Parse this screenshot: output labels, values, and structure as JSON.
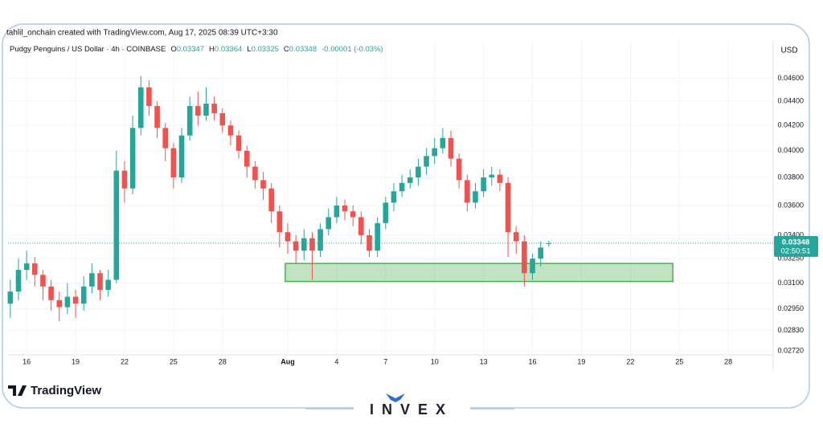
{
  "header": {
    "credit": "tahlil_onchain created with TradingView.com, Aug 17, 2025 08:39 UTC+3:30",
    "currency": "USD",
    "brand": "TradingView",
    "watermark": "INVEX"
  },
  "chart_data": {
    "type": "candlestick",
    "title": "Pudgy Penguins / US Dollar · 4h · COINBASE",
    "ohlc_legend": [
      {
        "label": "O",
        "value": "0.03347"
      },
      {
        "label": "H",
        "value": "0.03364"
      },
      {
        "label": "L",
        "value": "0.03325"
      },
      {
        "label": "C",
        "value": "0.03348"
      },
      {
        "label": "",
        "value": "-0.00001 (-0.03%)"
      }
    ],
    "up_color": "#26a69a",
    "down_color": "#ef5350",
    "log_scale": true,
    "grid": true,
    "xlim": [
      14.86,
      61.75
    ],
    "xticks": [
      {
        "value": 16,
        "label": "16"
      },
      {
        "value": 19,
        "label": "19"
      },
      {
        "value": 22,
        "label": "22"
      },
      {
        "value": 25,
        "label": "25"
      },
      {
        "value": 28,
        "label": "28"
      },
      {
        "value": 32,
        "label": "Aug"
      },
      {
        "value": 35,
        "label": "4"
      },
      {
        "value": 38,
        "label": "7"
      },
      {
        "value": 41,
        "label": "10"
      },
      {
        "value": 44,
        "label": "13"
      },
      {
        "value": 47,
        "label": "16"
      },
      {
        "value": 50,
        "label": "19"
      },
      {
        "value": 53,
        "label": "22"
      },
      {
        "value": 56,
        "label": "25"
      },
      {
        "value": 59,
        "label": "28"
      }
    ],
    "ylim": [
      0.027,
      0.0495
    ],
    "yticks": [
      {
        "value": 0.046,
        "label": "0.04600"
      },
      {
        "value": 0.044,
        "label": "0.04400"
      },
      {
        "value": 0.042,
        "label": "0.04200"
      },
      {
        "value": 0.04,
        "label": "0.04000"
      },
      {
        "value": 0.038,
        "label": "0.03800"
      },
      {
        "value": 0.036,
        "label": "0.03600"
      },
      {
        "value": 0.034,
        "label": "0.03400"
      },
      {
        "value": 0.0325,
        "label": "0.03250"
      },
      {
        "value": 0.031,
        "label": "0.03100"
      },
      {
        "value": 0.0295,
        "label": "0.02950"
      },
      {
        "value": 0.0283,
        "label": "0.02830"
      },
      {
        "value": 0.0272,
        "label": "0.02720"
      }
    ],
    "x": [
      15,
      15.5,
      16,
      16.5,
      17,
      17.5,
      18,
      18.5,
      19,
      19.5,
      20,
      20.5,
      21,
      21.5,
      22,
      22.5,
      23,
      23.5,
      24,
      24.5,
      25,
      25.5,
      26,
      26.5,
      27,
      27.5,
      28,
      28.5,
      29,
      29.5,
      30,
      30.5,
      31,
      31.5,
      32,
      32.5,
      33,
      33.5,
      34,
      34.5,
      35,
      35.5,
      36,
      36.5,
      37,
      37.5,
      38,
      38.5,
      39,
      39.5,
      40,
      40.5,
      41,
      41.5,
      42,
      42.5,
      43,
      43.5,
      44,
      44.5,
      45,
      45.5,
      46,
      46.5,
      47,
      47.5,
      48
    ],
    "open": [
      0.0298,
      0.0305,
      0.0318,
      0.0322,
      0.0315,
      0.0308,
      0.03,
      0.0296,
      0.0302,
      0.0298,
      0.0308,
      0.0316,
      0.0306,
      0.0312,
      0.0385,
      0.0372,
      0.0418,
      0.0452,
      0.0436,
      0.0418,
      0.0402,
      0.038,
      0.0412,
      0.0436,
      0.0428,
      0.0438,
      0.043,
      0.042,
      0.0412,
      0.04,
      0.0388,
      0.0378,
      0.0372,
      0.0356,
      0.0342,
      0.0336,
      0.033,
      0.0338,
      0.033,
      0.0344,
      0.0352,
      0.036,
      0.0356,
      0.0352,
      0.034,
      0.033,
      0.0348,
      0.0362,
      0.037,
      0.0376,
      0.038,
      0.0388,
      0.0396,
      0.0402,
      0.041,
      0.0394,
      0.0378,
      0.0362,
      0.037,
      0.038,
      0.0382,
      0.0376,
      0.0342,
      0.0336,
      0.0316,
      0.0325,
      0.03347
    ],
    "high": [
      0.0312,
      0.0325,
      0.033,
      0.0326,
      0.0318,
      0.0312,
      0.0305,
      0.031,
      0.0306,
      0.0314,
      0.0322,
      0.0318,
      0.0318,
      0.04,
      0.0392,
      0.0428,
      0.0462,
      0.0458,
      0.044,
      0.0422,
      0.0406,
      0.0418,
      0.0444,
      0.0448,
      0.0452,
      0.0444,
      0.0434,
      0.0424,
      0.0416,
      0.0404,
      0.0392,
      0.0384,
      0.0376,
      0.036,
      0.0348,
      0.034,
      0.0344,
      0.0342,
      0.0348,
      0.0358,
      0.0366,
      0.0364,
      0.036,
      0.0356,
      0.0344,
      0.0352,
      0.0366,
      0.0376,
      0.0382,
      0.0386,
      0.0394,
      0.0402,
      0.041,
      0.0418,
      0.0416,
      0.0398,
      0.0382,
      0.0376,
      0.0386,
      0.0388,
      0.0386,
      0.038,
      0.0346,
      0.034,
      0.0328,
      0.0336,
      0.03364
    ],
    "low": [
      0.029,
      0.03,
      0.0312,
      0.0308,
      0.03,
      0.0294,
      0.0288,
      0.0292,
      0.029,
      0.0294,
      0.0304,
      0.03,
      0.0302,
      0.031,
      0.0362,
      0.0368,
      0.0412,
      0.0428,
      0.041,
      0.0392,
      0.0372,
      0.0376,
      0.0408,
      0.042,
      0.0424,
      0.0424,
      0.0414,
      0.0404,
      0.0394,
      0.038,
      0.0372,
      0.0364,
      0.0348,
      0.0332,
      0.0328,
      0.0322,
      0.0324,
      0.0312,
      0.0326,
      0.034,
      0.0348,
      0.035,
      0.0346,
      0.0334,
      0.0326,
      0.0326,
      0.0344,
      0.0356,
      0.0366,
      0.0372,
      0.0374,
      0.0382,
      0.039,
      0.0398,
      0.0388,
      0.0372,
      0.0356,
      0.0358,
      0.0366,
      0.0374,
      0.037,
      0.0326,
      0.0328,
      0.0308,
      0.0312,
      0.032,
      0.03325
    ],
    "close": [
      0.0305,
      0.0318,
      0.0322,
      0.0315,
      0.0308,
      0.03,
      0.0296,
      0.0302,
      0.0298,
      0.0308,
      0.0316,
      0.0306,
      0.0312,
      0.0385,
      0.0372,
      0.0418,
      0.0452,
      0.0436,
      0.0418,
      0.0402,
      0.038,
      0.0412,
      0.0436,
      0.0428,
      0.0438,
      0.043,
      0.042,
      0.0412,
      0.04,
      0.0388,
      0.0378,
      0.0372,
      0.0356,
      0.0342,
      0.0336,
      0.033,
      0.0338,
      0.033,
      0.0344,
      0.0352,
      0.036,
      0.0356,
      0.0352,
      0.034,
      0.033,
      0.0348,
      0.0362,
      0.037,
      0.0376,
      0.038,
      0.0388,
      0.0396,
      0.0402,
      0.041,
      0.0394,
      0.0378,
      0.0362,
      0.037,
      0.038,
      0.0382,
      0.0376,
      0.0342,
      0.0336,
      0.0316,
      0.0325,
      0.0332,
      0.03348
    ],
    "price_label": "0.03348",
    "countdown": "02:50:51",
    "price_label_color": "#26a69a",
    "zone": {
      "x": [
        31.85,
        55.6
      ],
      "y": [
        0.0311,
        0.0322
      ],
      "color": "#4caf50"
    }
  }
}
